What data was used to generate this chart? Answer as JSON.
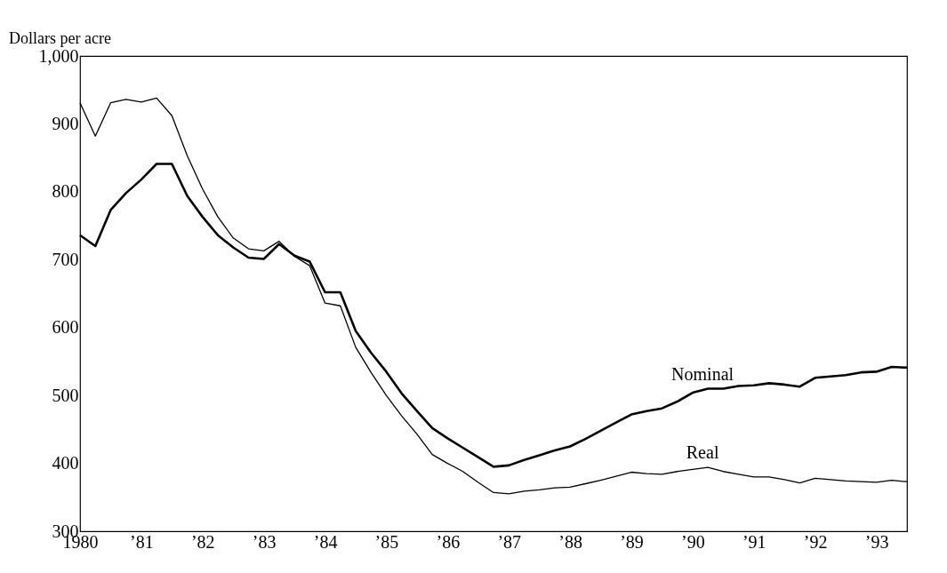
{
  "chart_data": {
    "type": "line",
    "ylabel": "Dollars per acre",
    "x": [
      1980,
      1980.25,
      1980.5,
      1980.75,
      1981,
      1981.25,
      1981.5,
      1981.75,
      1982,
      1982.25,
      1982.5,
      1982.75,
      1983,
      1983.25,
      1983.5,
      1983.75,
      1984,
      1984.25,
      1984.5,
      1984.75,
      1985,
      1985.25,
      1985.5,
      1985.75,
      1986,
      1986.25,
      1986.5,
      1986.75,
      1987,
      1987.25,
      1987.5,
      1987.75,
      1988,
      1988.25,
      1988.5,
      1988.75,
      1989,
      1989.25,
      1989.5,
      1989.75,
      1990,
      1990.25,
      1990.5,
      1990.75,
      1991,
      1991.25,
      1991.5,
      1991.75,
      1992,
      1992.25,
      1992.5,
      1992.75,
      1993,
      1993.25,
      1993.5
    ],
    "series": [
      {
        "name": "Nominal",
        "color": "#000000",
        "values": [
          736,
          720,
          773,
          798,
          818,
          841,
          841,
          794,
          763,
          736,
          718,
          703,
          701,
          723,
          706,
          697,
          652,
          652,
          595,
          563,
          535,
          503,
          477,
          452,
          437,
          423,
          409,
          395,
          397,
          405,
          412,
          419,
          425,
          436,
          448,
          460,
          472,
          477,
          481,
          491,
          504,
          510,
          510,
          514,
          515,
          518,
          516,
          513,
          526,
          528,
          530,
          534,
          535,
          542,
          541
        ]
      },
      {
        "name": "Real",
        "color": "#000000",
        "values": [
          931,
          882,
          931,
          936,
          932,
          938,
          912,
          853,
          804,
          763,
          732,
          716,
          713,
          727,
          705,
          691,
          636,
          632,
          571,
          534,
          500,
          470,
          443,
          413,
          400,
          388,
          372,
          357,
          355,
          359,
          361,
          364,
          365,
          370,
          375,
          381,
          387,
          385,
          384,
          388,
          391,
          394,
          388,
          384,
          380,
          380,
          376,
          371,
          378,
          376,
          374,
          373,
          372,
          375,
          373
        ]
      }
    ],
    "xlim": [
      1980,
      1993.5
    ],
    "xticks": [
      1980,
      {
        "value": 1981,
        "label": "’81"
      },
      {
        "value": 1982,
        "label": "’82"
      },
      {
        "value": 1983,
        "label": "’83"
      },
      {
        "value": 1984,
        "label": "’84"
      },
      {
        "value": 1985,
        "label": "’85"
      },
      {
        "value": 1986,
        "label": "’86"
      },
      {
        "value": 1987,
        "label": "’87"
      },
      {
        "value": 1988,
        "label": "’88"
      },
      {
        "value": 1989,
        "label": "’89"
      },
      {
        "value": 1990,
        "label": "’90"
      },
      {
        "value": 1991,
        "label": "’91"
      },
      {
        "value": 1992,
        "label": "’92"
      },
      {
        "value": 1993,
        "label": "’93"
      }
    ],
    "ylim": [
      300,
      1000
    ],
    "yticks": [
      300,
      400,
      500,
      600,
      700,
      800,
      900,
      {
        "value": 1000,
        "label": "1,000"
      }
    ],
    "grid": false,
    "legend": false,
    "marker": "none",
    "line_style": "solid"
  }
}
